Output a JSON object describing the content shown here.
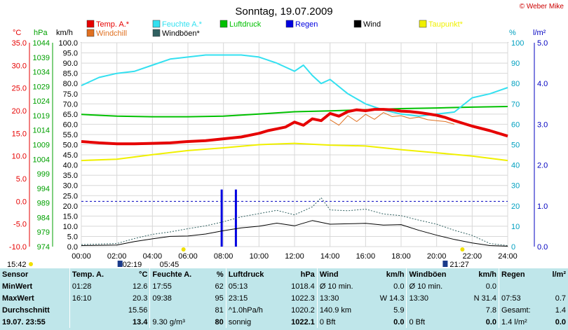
{
  "chart_data": {
    "type": "line",
    "title": "Sonntag, 19.07.2009",
    "copyright": "© Weber Mike",
    "xlabel": "",
    "x_ticks": [
      "00:00",
      "02:00",
      "04:00",
      "06:00",
      "08:00",
      "10:00",
      "12:00",
      "14:00",
      "16:00",
      "18:00",
      "20:00",
      "22:00",
      "24:00"
    ],
    "x_range": [
      0,
      24
    ],
    "axes": {
      "temp": {
        "unit": "°C",
        "range": [
          -10,
          35
        ],
        "ticks": [
          "35.0",
          "30.0",
          "25.0",
          "20.0",
          "15.0",
          "10.0",
          "5.0",
          "0.0",
          "-5.0",
          "-10.0"
        ]
      },
      "pressure": {
        "unit": "hPa",
        "range": [
          974,
          1044
        ],
        "ticks": [
          "1044",
          "1039",
          "1034",
          "1029",
          "1024",
          "1019",
          "1014",
          "1009",
          "1004",
          "999",
          "994",
          "989",
          "984",
          "979",
          "974"
        ]
      },
      "wind": {
        "unit": "km/h",
        "range": [
          0,
          100
        ],
        "step": 5
      },
      "humidity": {
        "unit": "%",
        "range": [
          0,
          100
        ],
        "ticks": [
          "100",
          "90",
          "80",
          "70",
          "60",
          "50",
          "40",
          "30",
          "20",
          "10",
          "0"
        ]
      },
      "rain": {
        "unit": "l/m²",
        "range": [
          0,
          5
        ],
        "ticks": [
          "5.0",
          "4.0",
          "3.0",
          "2.0",
          "1.0",
          "0.0"
        ]
      }
    },
    "legend": [
      {
        "name": "Temp. A.*",
        "color": "#e60000"
      },
      {
        "name": "Feuchte A.*",
        "color": "#33e0f0"
      },
      {
        "name": "Luftdruck",
        "color": "#00c000"
      },
      {
        "name": "Regen",
        "color": "#0000e0"
      },
      {
        "name": "Wind",
        "color": "#000000"
      },
      {
        "name": "Taupunkt*",
        "color": "#f0f000"
      },
      {
        "name": "Windchill",
        "color": "#e07020"
      },
      {
        "name": "Windböen*",
        "color": "#306060"
      }
    ],
    "series": {
      "temp": {
        "x": [
          0,
          1,
          2,
          3,
          4,
          5,
          6,
          7,
          8,
          9,
          10,
          10.5,
          11,
          11.5,
          12,
          12.5,
          13,
          13.5,
          14,
          14.5,
          15,
          15.5,
          16,
          16.5,
          17,
          17.5,
          18,
          18.5,
          19,
          19.5,
          20,
          20.5,
          21,
          21.5,
          22,
          23,
          24
        ],
        "y": [
          13.2,
          12.9,
          12.7,
          12.7,
          12.8,
          12.9,
          13.2,
          13.4,
          13.8,
          14.2,
          15.0,
          15.6,
          16.0,
          16.4,
          17.5,
          16.8,
          18.2,
          17.8,
          19.4,
          18.8,
          19.8,
          20.2,
          20.0,
          20.3,
          20.3,
          20.2,
          19.9,
          19.8,
          19.6,
          19.3,
          19.0,
          18.5,
          17.8,
          17.2,
          16.6,
          15.6,
          14.4
        ]
      },
      "humidity": {
        "x": [
          0,
          1,
          2,
          3,
          4,
          5,
          6,
          7,
          8,
          9,
          10,
          11,
          11.5,
          12,
          12.5,
          13,
          13.5,
          14,
          15,
          16,
          17,
          18,
          19,
          20,
          21,
          22,
          23,
          24
        ],
        "y": [
          79,
          83,
          85,
          86,
          89,
          92,
          93,
          94,
          94,
          94,
          93,
          90,
          88,
          86,
          89,
          84,
          80,
          82,
          75,
          70,
          67,
          65,
          64,
          65,
          66,
          73,
          75,
          78
        ]
      },
      "dewpoint": {
        "x": [
          0,
          2,
          4,
          6,
          8,
          10,
          12,
          14,
          16,
          18,
          20,
          22,
          24
        ],
        "y": [
          9.0,
          9.3,
          10.3,
          11.2,
          11.8,
          12.5,
          12.8,
          12.4,
          12.2,
          11.4,
          10.7,
          10.0,
          9.0
        ]
      },
      "pressure": {
        "x": [
          0,
          2,
          4,
          6,
          8,
          10,
          12,
          14,
          16,
          18,
          20,
          22,
          24
        ],
        "y": [
          1019.4,
          1018.8,
          1018.6,
          1018.6,
          1018.8,
          1019.5,
          1020.3,
          1020.6,
          1021.0,
          1021.4,
          1021.6,
          1021.9,
          1022.1
        ]
      },
      "windchill": {
        "x": [
          14,
          14.5,
          15,
          15.5,
          16,
          16.5,
          17,
          17.5,
          18,
          18.5,
          19,
          19.5,
          20,
          20.5,
          21
        ],
        "y": [
          18.0,
          16.8,
          18.9,
          17.6,
          19.2,
          18.1,
          19.6,
          18.7,
          18.9,
          18.3,
          18.6,
          18.0,
          17.8,
          17.6,
          17.0
        ]
      },
      "wind": {
        "x": [
          0,
          2,
          3,
          4,
          5,
          6,
          7,
          8,
          9,
          10,
          11,
          12,
          13,
          14,
          15,
          16,
          17,
          18,
          19,
          20,
          21,
          22,
          23,
          24
        ],
        "y": [
          0.5,
          0.8,
          2.5,
          3.8,
          5.0,
          5.2,
          6.2,
          7.8,
          9.2,
          10.0,
          11.5,
          10.2,
          12.8,
          11.0,
          11.2,
          11.4,
          10.6,
          10.8,
          8.0,
          5.6,
          3.5,
          1.8,
          0.5,
          0.2
        ]
      },
      "gusts": {
        "x": [
          0,
          2,
          3,
          4,
          5,
          6,
          7,
          8,
          9,
          10,
          11,
          12,
          13,
          13.5,
          14,
          15,
          16,
          17,
          18,
          19,
          20,
          21,
          22,
          23,
          24
        ],
        "y": [
          1.0,
          1.5,
          4.0,
          6.0,
          7.2,
          8.8,
          10.2,
          12.2,
          14.6,
          16.2,
          17.8,
          15.6,
          19.5,
          24.0,
          18.0,
          17.6,
          18.4,
          16.0,
          15.2,
          13.0,
          11.0,
          8.0,
          5.5,
          1.5,
          0.5
        ]
      },
      "rain": {
        "x": [
          7.9,
          8.7
        ],
        "y": [
          1.4,
          1.4
        ]
      }
    },
    "markers": {
      "sunrise": "05:45",
      "sunset": "21:27",
      "moonrise": "02:19",
      "moonset": "15:42"
    }
  },
  "stats": {
    "headers": [
      "Sensor",
      "Temp. A.",
      "°C",
      "Feuchte A.",
      "%",
      "Luftdruck",
      "hPa",
      "Wind",
      "km/h",
      "Windböen",
      "km/h",
      "Regen",
      "l/m²"
    ],
    "rows": [
      {
        "label": "MinWert",
        "cells": [
          "01:28",
          "12.6",
          "17:55",
          "62",
          "05:13",
          "1018.4",
          "Ø 10 min.",
          "0.0",
          "Ø 10 min.",
          "0.0",
          "",
          ""
        ]
      },
      {
        "label": "MaxWert",
        "cells": [
          "16:10",
          "20.3",
          "09:38",
          "95",
          "23:15",
          "1022.3",
          "13:30",
          "W 14.3",
          "13:30",
          "N 31.4",
          "07:53",
          "0.7"
        ]
      },
      {
        "label": "Durchschnitt",
        "cells": [
          "",
          "15.56",
          "",
          "81",
          "^1.0hPa/h",
          "1020.2",
          "140.9 km",
          "5.9",
          "",
          "7.8",
          "Gesamt:",
          "1.4"
        ]
      },
      {
        "label": "19.07. 23:55",
        "cells": [
          "",
          "13.4",
          "9.30 g/m³",
          "80",
          "sonnig",
          "1022.1",
          "0 Bft",
          "0.0",
          "0 Bft",
          "0.0",
          "1.4 l/m²",
          "0.0"
        ]
      }
    ]
  }
}
